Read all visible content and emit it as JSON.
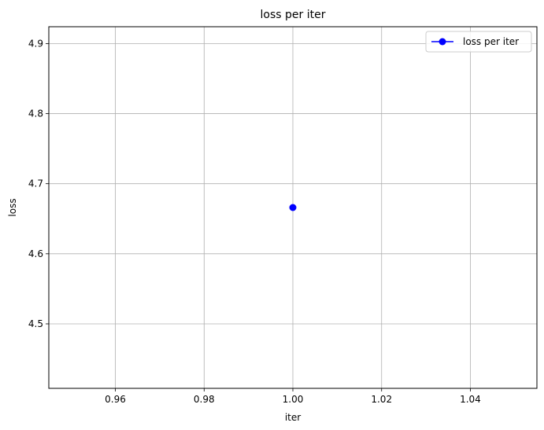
{
  "chart_data": {
    "type": "line",
    "title": "loss per iter",
    "xlabel": "iter",
    "ylabel": "loss",
    "xlim": [
      0.945,
      1.055
    ],
    "ylim": [
      4.408,
      4.924
    ],
    "x_ticks": [
      0.96,
      0.98,
      1.0,
      1.02,
      1.04
    ],
    "x_tick_labels": [
      "0.96",
      "0.98",
      "1.00",
      "1.02",
      "1.04"
    ],
    "y_ticks": [
      4.5,
      4.6,
      4.7,
      4.8,
      4.9
    ],
    "y_tick_labels": [
      "4.5",
      "4.6",
      "4.7",
      "4.8",
      "4.9"
    ],
    "grid": true,
    "legend_position": "upper-right",
    "series": [
      {
        "name": "loss per iter",
        "color": "#0000ff",
        "marker": "circle",
        "x": [
          1.0
        ],
        "y": [
          4.666
        ]
      }
    ]
  }
}
